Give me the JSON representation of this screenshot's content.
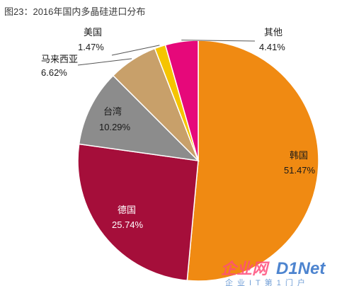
{
  "title": "图23：2016年国内多晶硅进口分布",
  "chart_data": {
    "type": "pie",
    "title": "图23：2016年国内多晶硅进口分布",
    "start_angle_deg": 0,
    "direction": "clockwise",
    "slices": [
      {
        "name": "韩国",
        "value": 51.47,
        "label": "51.47%",
        "color": "#f08a12"
      },
      {
        "name": "德国",
        "value": 25.74,
        "label": "25.74%",
        "color": "#a50e3a"
      },
      {
        "name": "台湾",
        "value": 10.29,
        "label": "10.29%",
        "color": "#8c8c8c"
      },
      {
        "name": "马来西亚",
        "value": 6.62,
        "label": "6.62%",
        "color": "#c8a06a"
      },
      {
        "name": "美国",
        "value": 1.47,
        "label": "1.47%",
        "color": "#f5c400"
      },
      {
        "name": "其他",
        "value": 4.41,
        "label": "4.41%",
        "color": "#e6087a"
      }
    ]
  },
  "watermark": {
    "logo": "D1Net",
    "subtitle": "企业IT第1门户"
  }
}
